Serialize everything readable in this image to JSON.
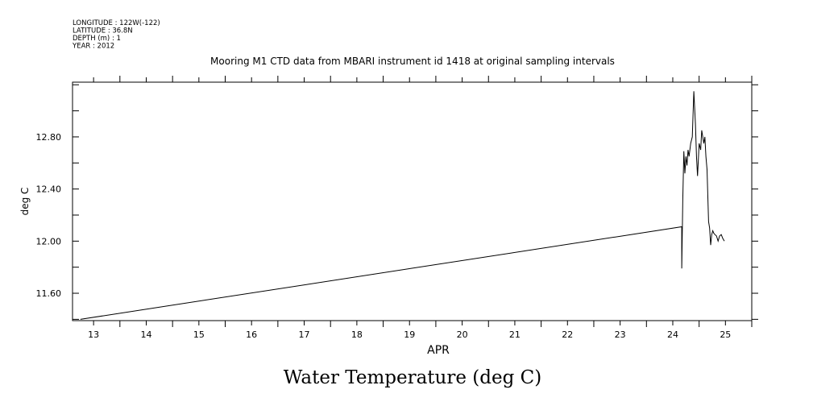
{
  "header": {
    "lines": [
      "LONGITUDE : 122W(-122)",
      "LATITUDE : 36.8N",
      "DEPTH (m) : 1",
      "YEAR : 2012"
    ]
  },
  "chart_data": {
    "type": "line",
    "title": "Mooring M1 CTD data from MBARI instrument id 1418 at original sampling intervals",
    "xlabel": "APR",
    "ylabel": "deg C",
    "caption": "Water Temperature (deg C)",
    "xlim": [
      12.6,
      25.5
    ],
    "ylim": [
      11.39,
      13.22
    ],
    "x_ticks": [
      13,
      14,
      15,
      16,
      17,
      18,
      19,
      20,
      21,
      22,
      23,
      24,
      25
    ],
    "y_ticks": [
      11.6,
      12.0,
      12.4,
      12.8
    ],
    "y_tick_labels": [
      "11.60",
      "12.00",
      "12.40",
      "12.80"
    ],
    "grid": false,
    "series": [
      {
        "x": [
          12.75,
          24.17,
          24.17,
          24.19,
          24.21,
          24.23,
          24.25,
          24.27,
          24.29,
          24.31,
          24.34,
          24.37,
          24.4,
          24.43,
          24.45,
          24.47,
          24.5,
          24.53,
          24.55,
          24.57,
          24.59,
          24.61,
          24.63,
          24.65,
          24.68,
          24.7,
          24.72,
          24.74,
          24.76,
          24.78,
          24.8,
          24.83,
          24.86,
          24.89,
          24.92,
          24.95,
          24.98
        ],
        "y": [
          11.4,
          12.11,
          11.79,
          12.32,
          12.69,
          12.52,
          12.65,
          12.58,
          12.7,
          12.65,
          12.75,
          12.8,
          13.15,
          12.9,
          12.65,
          12.5,
          12.75,
          12.7,
          12.85,
          12.8,
          12.75,
          12.8,
          12.65,
          12.55,
          12.15,
          12.1,
          11.97,
          12.05,
          12.08,
          12.06,
          12.05,
          12.04,
          12.0,
          12.04,
          12.05,
          12.02,
          12.0
        ]
      }
    ]
  }
}
